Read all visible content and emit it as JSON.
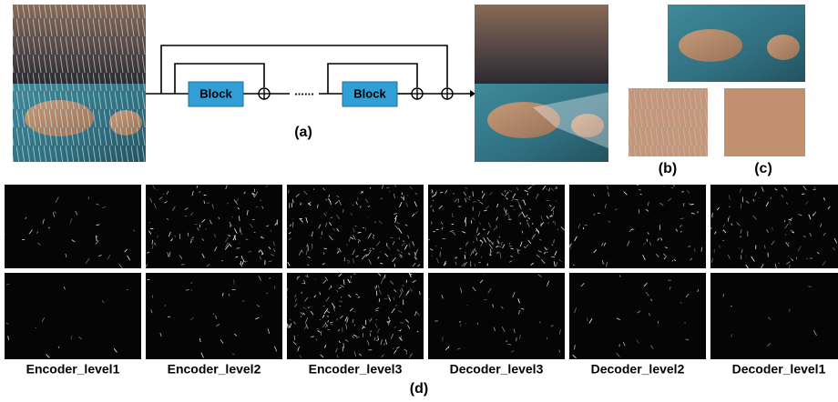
{
  "diagram": {
    "block_labels": [
      "Block",
      "Block"
    ],
    "ellipsis": "......",
    "caption": "(a)"
  },
  "panels": {
    "b": "(b)",
    "c": "(c)",
    "d": "(d)"
  },
  "feature_maps": {
    "labels": [
      "Encoder_level1",
      "Encoder_level2",
      "Encoder_level3",
      "Decoder_level3",
      "Decoder_level2",
      "Decoder_level1"
    ]
  }
}
